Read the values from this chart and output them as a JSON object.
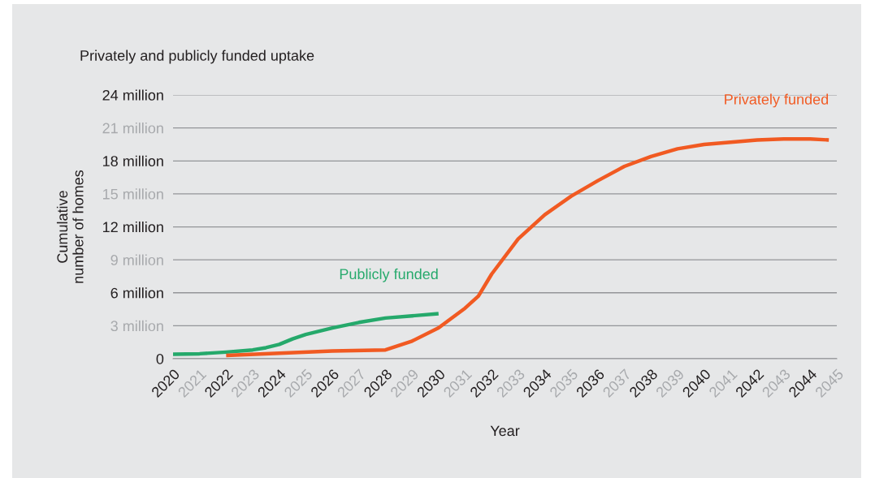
{
  "chart_data": {
    "type": "line",
    "title": "Privately and publicly funded uptake",
    "xlabel": "Year",
    "ylabel": "Cumulative\nnumber of homes",
    "series": [
      {
        "name": "Publicly funded",
        "color": "#25a96b",
        "x": [
          2020,
          2021,
          2022,
          2023,
          2023.5,
          2024,
          2024.5,
          2025,
          2026,
          2027,
          2028,
          2029,
          2030
        ],
        "values": [
          0.4,
          0.45,
          0.6,
          0.8,
          1.0,
          1.3,
          1.8,
          2.2,
          2.8,
          3.3,
          3.7,
          3.9,
          4.1
        ]
      },
      {
        "name": "Privately funded",
        "color": "#f15a22",
        "x": [
          2022,
          2024,
          2026,
          2028,
          2029,
          2030,
          2031,
          2031.5,
          2032,
          2033,
          2034,
          2035,
          2036,
          2037,
          2038,
          2039,
          2040,
          2041,
          2042,
          2043,
          2044,
          2044.7
        ],
        "values": [
          0.3,
          0.5,
          0.7,
          0.8,
          1.6,
          2.8,
          4.6,
          5.7,
          7.7,
          10.9,
          13.1,
          14.8,
          16.2,
          17.5,
          18.4,
          19.1,
          19.5,
          19.7,
          19.9,
          20.0,
          20.0,
          19.9
        ]
      }
    ],
    "xlim": [
      2020,
      2045
    ],
    "xticks": [
      2020,
      2021,
      2022,
      2023,
      2024,
      2025,
      2026,
      2027,
      2028,
      2029,
      2030,
      2031,
      2032,
      2033,
      2034,
      2035,
      2036,
      2037,
      2038,
      2039,
      2040,
      2041,
      2042,
      2043,
      2044,
      2045
    ],
    "ylim": [
      0,
      24
    ],
    "yticks": [
      0,
      {
        "value": 3,
        "label": "3 million"
      },
      {
        "value": 6,
        "label": "6 million"
      },
      {
        "value": 9,
        "label": "9 million"
      },
      {
        "value": 12,
        "label": "12 million"
      },
      {
        "value": 15,
        "label": "15 million"
      },
      {
        "value": 18,
        "label": "18 million"
      },
      {
        "value": 21,
        "label": "21 million"
      },
      {
        "value": 24,
        "label": "24 million"
      }
    ],
    "grid": "y",
    "marker": "none",
    "line_style": "solid"
  }
}
